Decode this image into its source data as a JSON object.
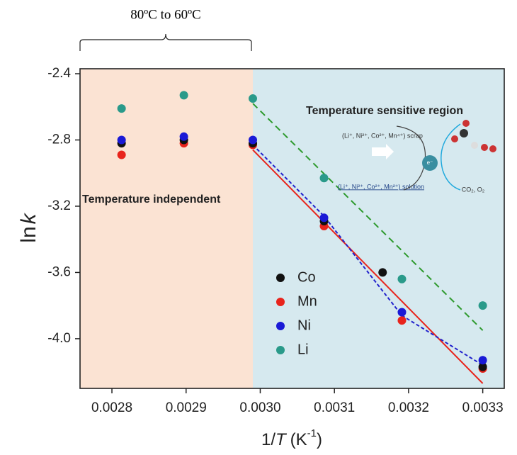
{
  "chart_data": {
    "type": "scatter",
    "bracket_label": "80ºC to 60ºC",
    "y_label": [
      "ln",
      "k"
    ],
    "x_label": [
      "1/",
      "T",
      "(K",
      "-1",
      ")"
    ],
    "xlim": [
      0.002757,
      0.003329
    ],
    "ylim": [
      -2.37,
      -4.3
    ],
    "xticks": [
      0.0028,
      0.0029,
      {
        "value": 0.003,
        "label": "0.0030"
      },
      0.0031,
      0.0032,
      0.0033
    ],
    "yticks": [
      -2.4,
      -2.8,
      -3.2,
      -3.6,
      {
        "value": -4,
        "label": "-4.0"
      }
    ],
    "regions": [
      {
        "from": 0.002757,
        "to": 0.00299,
        "color": "#fbe3d3",
        "label": "Temperature independent"
      },
      {
        "from": 0.00299,
        "to": 0.003329,
        "color": "#d6e9ef",
        "label": "Temperature sensitive region"
      }
    ],
    "x": [
      0.002813,
      0.002897,
      0.00299,
      0.003086,
      0.003191,
      0.0033
    ],
    "series": [
      {
        "name": "Co",
        "color": "#111111",
        "values": [
          -2.82,
          -2.8,
          -2.82,
          -3.29,
          -3.6,
          -4.17
        ],
        "x": [
          0.002813,
          0.002897,
          0.00299,
          0.003086,
          0.003165,
          0.0033
        ]
      },
      {
        "name": "Mn",
        "color": "#e8241c",
        "values": [
          -2.89,
          -2.82,
          -2.83,
          -3.32,
          -3.89,
          -4.18
        ]
      },
      {
        "name": "Ni",
        "color": "#1a1ad6",
        "values": [
          -2.8,
          -2.78,
          -2.8,
          -3.27,
          -3.84,
          -4.13
        ]
      },
      {
        "name": "Li",
        "color": "#2a9a8a",
        "values": [
          -2.61,
          -2.53,
          -2.55,
          -3.03,
          -3.64,
          -3.8
        ]
      }
    ],
    "fits": [
      {
        "color": "#e8241c",
        "dash": "none",
        "x": [
          0.00299,
          0.0033
        ],
        "y": [
          -2.86,
          -4.27
        ]
      },
      {
        "color": "#2222cc",
        "dash": "5 3",
        "x": [
          0.00299,
          0.003086,
          0.003191,
          0.0033
        ],
        "y": [
          -2.83,
          -3.26,
          -3.86,
          -4.16
        ]
      },
      {
        "color": "#2e9a2e",
        "dash": "9 6",
        "x": [
          0.00299,
          0.0033
        ],
        "y": [
          -2.58,
          -3.95
        ]
      }
    ],
    "inset": {
      "scrap": "(Li⁺, Ni²⁺, Co²⁺, Mn⁴⁺) scrap",
      "solution": "(Li⁺, Ni²⁺, Co²⁺, Mn²⁺) solution",
      "electron": "e⁻",
      "gases": "CO₂, O₂"
    }
  }
}
